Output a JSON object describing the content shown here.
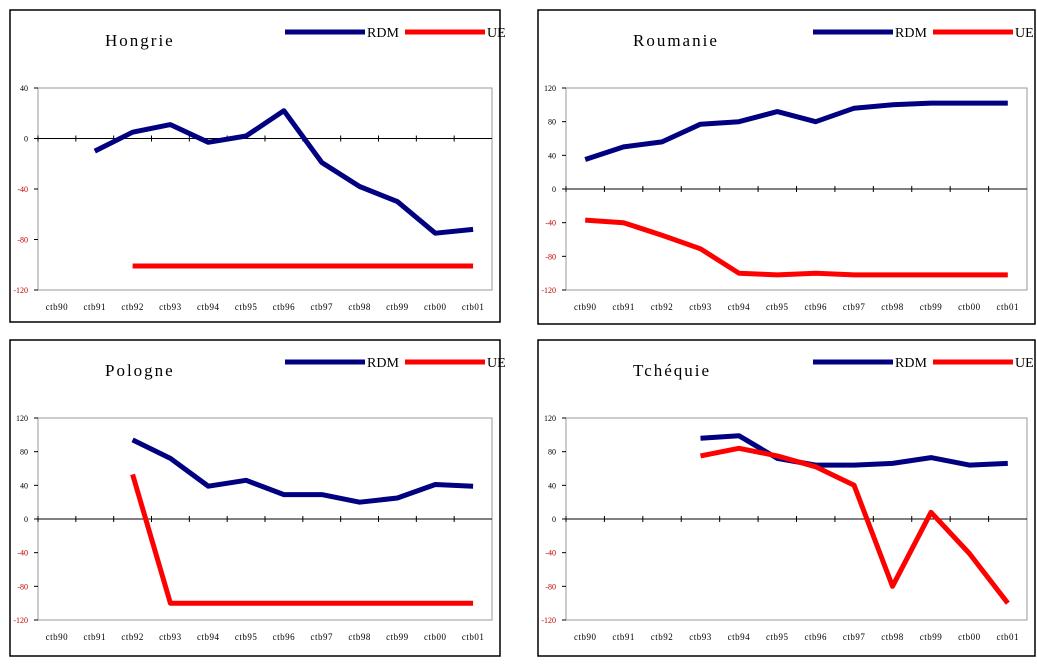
{
  "chart_data": [
    {
      "type": "line",
      "title": "Hongrie",
      "categories": [
        "ctb90",
        "ctb91",
        "ctb92",
        "ctb93",
        "ctb94",
        "ctb95",
        "ctb96",
        "ctb97",
        "ctb98",
        "ctb99",
        "ctb00",
        "ctb01"
      ],
      "series": [
        {
          "name": "RDM",
          "color": "#000080",
          "values": [
            null,
            -10,
            5,
            11,
            -3,
            2,
            22,
            -19,
            -38,
            -50,
            -75,
            -72
          ]
        },
        {
          "name": "UE",
          "color": "#ff0000",
          "values": [
            null,
            null,
            -101,
            -101,
            -101,
            -101,
            -101,
            -101,
            -101,
            -101,
            -101,
            -101
          ]
        }
      ],
      "ylim": [
        -120,
        40
      ],
      "yticks": [
        -120,
        -80,
        -40,
        0,
        40
      ]
    },
    {
      "type": "line",
      "title": "Roumanie",
      "categories": [
        "ctb90",
        "ctb91",
        "ctb92",
        "ctb93",
        "ctb94",
        "ctb95",
        "ctb96",
        "ctb97",
        "ctb98",
        "ctb99",
        "ctb00",
        "ctb01"
      ],
      "series": [
        {
          "name": "RDM",
          "color": "#000080",
          "values": [
            35,
            50,
            56,
            77,
            80,
            92,
            80,
            96,
            100,
            102,
            102,
            102
          ]
        },
        {
          "name": "UE",
          "color": "#ff0000",
          "values": [
            -37,
            -40,
            -55,
            -71,
            -100,
            -102,
            -100,
            -102,
            -102,
            -102,
            -102,
            -102
          ]
        }
      ],
      "ylim": [
        -120,
        120
      ],
      "yticks": [
        -120,
        -80,
        -40,
        0,
        40,
        80,
        120
      ]
    },
    {
      "type": "line",
      "title": "Pologne",
      "categories": [
        "ctb90",
        "ctb91",
        "ctb92",
        "ctb93",
        "ctb94",
        "ctb95",
        "ctb96",
        "ctb97",
        "ctb98",
        "ctb99",
        "ctb00",
        "ctb01"
      ],
      "series": [
        {
          "name": "RDM",
          "color": "#000080",
          "values": [
            null,
            null,
            94,
            72,
            39,
            46,
            29,
            29,
            20,
            25,
            41,
            39
          ]
        },
        {
          "name": "UE",
          "color": "#ff0000",
          "values": [
            null,
            null,
            53,
            -100,
            -100,
            -100,
            -100,
            -100,
            -100,
            -100,
            -100,
            -100
          ]
        }
      ],
      "ylim": [
        -120,
        120
      ],
      "yticks": [
        -120,
        -80,
        -40,
        0,
        40,
        80,
        120
      ]
    },
    {
      "type": "line",
      "title": "Tchéquie",
      "categories": [
        "ctb90",
        "ctb91",
        "ctb92",
        "ctb93",
        "ctb94",
        "ctb95",
        "ctb96",
        "ctb97",
        "ctb98",
        "ctb99",
        "ctb00",
        "ctb01"
      ],
      "series": [
        {
          "name": "RDM",
          "color": "#000080",
          "values": [
            null,
            null,
            null,
            96,
            99,
            72,
            64,
            64,
            66,
            73,
            64,
            66
          ]
        },
        {
          "name": "UE",
          "color": "#ff0000",
          "values": [
            null,
            null,
            null,
            75,
            84,
            75,
            62,
            40,
            -80,
            8,
            -41,
            -100
          ]
        }
      ],
      "ylim": [
        -120,
        120
      ],
      "yticks": [
        -120,
        -80,
        -40,
        0,
        40,
        80,
        120
      ]
    }
  ]
}
